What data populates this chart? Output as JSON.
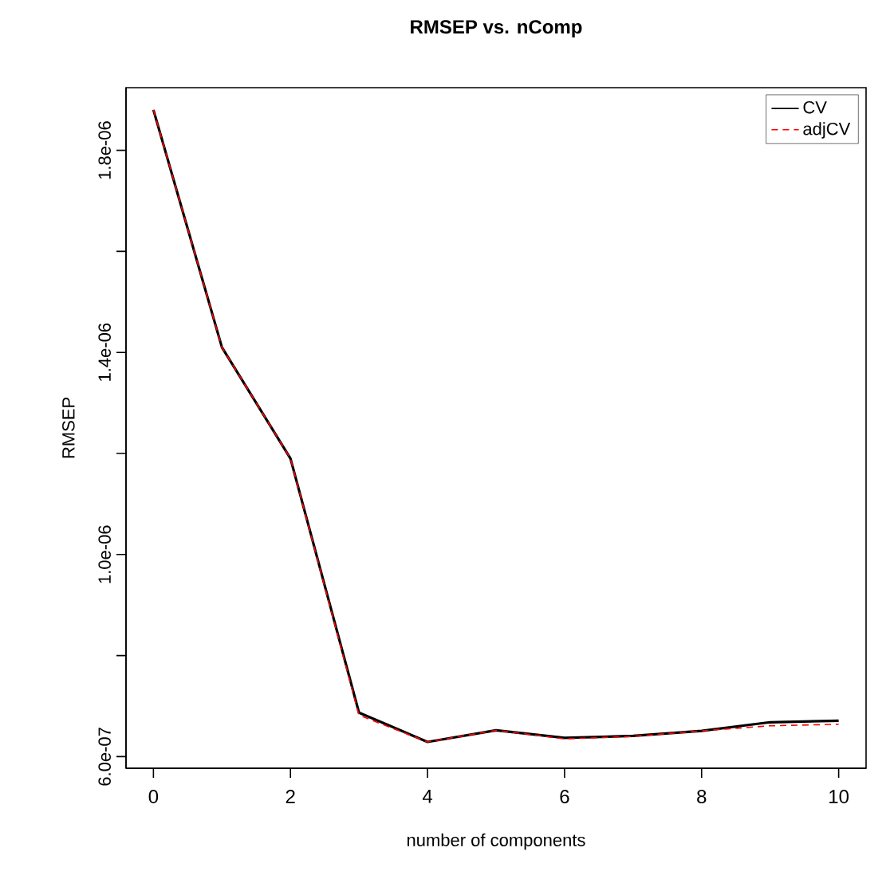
{
  "chart_data": {
    "type": "line",
    "title": "RMSEP vs. nComp",
    "xlabel": "number of components",
    "ylabel": "RMSEP",
    "x": [
      0,
      1,
      2,
      3,
      4,
      5,
      6,
      7,
      8,
      9,
      10
    ],
    "series": [
      {
        "name": "CV",
        "color": "#000000",
        "line_style": "solid",
        "values": [
          1.88e-06,
          1.41e-06,
          1.19e-06,
          6.87e-07,
          6.29e-07,
          6.52e-07,
          6.37e-07,
          6.41e-07,
          6.51e-07,
          6.68e-07,
          6.71e-07
        ]
      },
      {
        "name": "adjCV",
        "color": "#ff0000",
        "line_style": "dashed",
        "values": [
          1.88e-06,
          1.41e-06,
          1.19e-06,
          6.82e-07,
          6.29e-07,
          6.52e-07,
          6.35e-07,
          6.4e-07,
          6.51e-07,
          6.61e-07,
          6.64e-07
        ]
      }
    ],
    "xlim": [
      -0.4,
      10.4
    ],
    "ylim": [
      5.77e-07,
      1.924e-06
    ],
    "xticks": [
      0,
      2,
      4,
      6,
      8,
      10
    ],
    "yticks": [
      {
        "value": 6e-07,
        "label": "6.0e-07"
      },
      {
        "value": 8e-07,
        "label": null
      },
      {
        "value": 1e-06,
        "label": "1.0e-06"
      },
      {
        "value": 1.2e-06,
        "label": null
      },
      {
        "value": 1.4e-06,
        "label": "1.4e-06"
      },
      {
        "value": 1.6e-06,
        "label": null
      },
      {
        "value": 1.8e-06,
        "label": "1.8e-06"
      }
    ],
    "grid": false,
    "legend": "top right",
    "marker": "none"
  }
}
